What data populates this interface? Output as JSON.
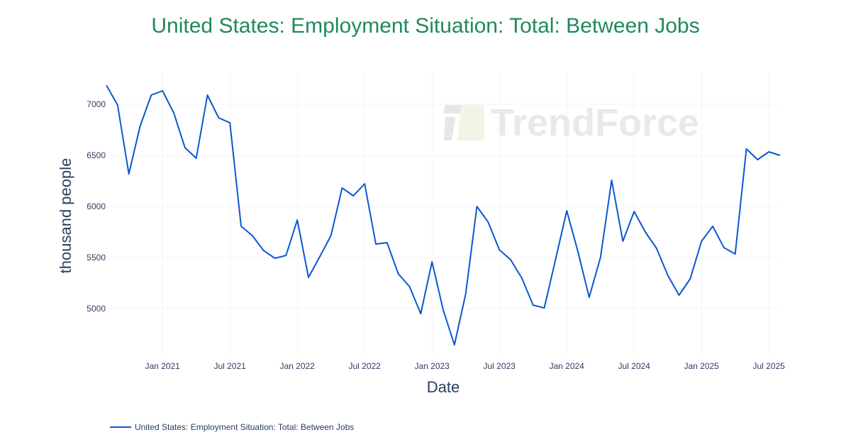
{
  "chart_data": {
    "type": "line",
    "title": "United States: Employment Situation: Total: Between Jobs",
    "xlabel": "Date",
    "ylabel": "thousand people",
    "x_ticks": [
      "Jan 2021",
      "Jul 2021",
      "Jan 2022",
      "Jul 2022",
      "Jan 2023",
      "Jul 2023",
      "Jan 2024",
      "Jul 2024",
      "Jan 2025",
      "Jul 2025"
    ],
    "y_ticks": [
      5000,
      5500,
      6000,
      6500,
      7000
    ],
    "ylim": [
      4550,
      7330
    ],
    "grid": true,
    "legend_position": "bottom-left",
    "series": [
      {
        "name": "United States: Employment Situation: Total: Between Jobs",
        "color": "#0b57d0",
        "x": [
          "2020-08",
          "2020-09",
          "2020-10",
          "2020-11",
          "2020-12",
          "2021-01",
          "2021-02",
          "2021-03",
          "2021-04",
          "2021-05",
          "2021-06",
          "2021-07",
          "2021-08",
          "2021-09",
          "2021-10",
          "2021-11",
          "2021-12",
          "2022-01",
          "2022-02",
          "2022-03",
          "2022-04",
          "2022-05",
          "2022-06",
          "2022-07",
          "2022-08",
          "2022-09",
          "2022-10",
          "2022-11",
          "2022-12",
          "2023-01",
          "2023-02",
          "2023-03",
          "2023-04",
          "2023-05",
          "2023-06",
          "2023-07",
          "2023-08",
          "2023-09",
          "2023-10",
          "2023-11",
          "2023-12",
          "2024-01",
          "2024-02",
          "2024-03",
          "2024-04",
          "2024-05",
          "2024-06",
          "2024-07",
          "2024-08",
          "2024-09",
          "2024-10",
          "2024-11",
          "2024-12",
          "2025-01",
          "2025-02",
          "2025-03",
          "2025-04",
          "2025-05",
          "2025-06",
          "2025-07",
          "2025-08"
        ],
        "values": [
          7187,
          6993,
          6319,
          6785,
          7090,
          7132,
          6917,
          6576,
          6472,
          7090,
          6868,
          6819,
          5806,
          5715,
          5569,
          5493,
          5521,
          5868,
          5306,
          5507,
          5715,
          6181,
          6104,
          6222,
          5632,
          5646,
          5340,
          5215,
          4951,
          5458,
          4986,
          4646,
          5146,
          6000,
          5847,
          5576,
          5479,
          5299,
          5035,
          5007,
          5479,
          5958,
          5556,
          5111,
          5500,
          6257,
          5660,
          5951,
          5750,
          5590,
          5326,
          5132,
          5292,
          5660,
          5806,
          5597,
          5535,
          6563,
          6458,
          6535,
          6500
        ]
      }
    ]
  },
  "watermark": "TrendForce",
  "legend": {
    "label": "United States: Employment Situation: Total: Between Jobs"
  }
}
